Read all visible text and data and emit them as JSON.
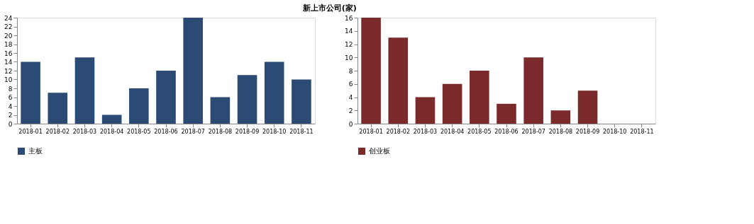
{
  "chart_data": [
    {
      "type": "bar",
      "title": "新上市公司(家)",
      "categories": [
        "2018-01",
        "2018-02",
        "2018-03",
        "2018-04",
        "2018-05",
        "2018-06",
        "2018-07",
        "2018-08",
        "2018-09",
        "2018-10",
        "2018-11"
      ],
      "series": [
        {
          "name": "主板",
          "color": "#2b4a74",
          "values": [
            14,
            7,
            15,
            2,
            8,
            12,
            24,
            6,
            11,
            14,
            10
          ]
        }
      ],
      "ylim": [
        0,
        24
      ],
      "yticks": [
        0,
        2,
        4,
        6,
        8,
        10,
        12,
        14,
        16,
        18,
        20,
        22,
        24
      ],
      "grid": false,
      "legend": "bottom"
    },
    {
      "type": "bar",
      "categories": [
        "2018-01",
        "2018-02",
        "2018-03",
        "2018-04",
        "2018-05",
        "2018-06",
        "2018-07",
        "2018-08",
        "2018-09",
        "2018-10",
        "2018-11"
      ],
      "series": [
        {
          "name": "创业板",
          "color": "#7a2a2a",
          "values": [
            16,
            13,
            4,
            6,
            8,
            3,
            10,
            2,
            5,
            0,
            0
          ]
        }
      ],
      "ylim": [
        0,
        16
      ],
      "yticks": [
        0,
        2,
        4,
        6,
        8,
        10,
        12,
        14,
        16
      ],
      "grid": false,
      "legend": "bottom"
    }
  ]
}
